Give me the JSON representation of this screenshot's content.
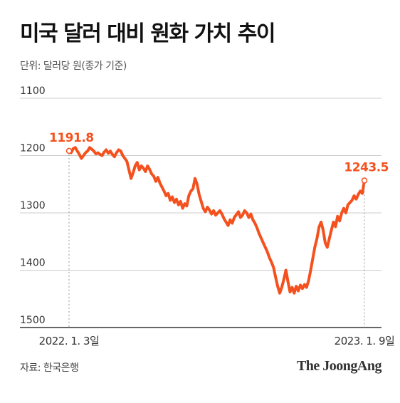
{
  "title": "미국 달러 대비 원화 가치 추이",
  "unit_label": "단위: 달러당 원(종가 기준)",
  "source": "자료: 한국은행",
  "brand": "The JoongAng",
  "colors": {
    "line": "#f4511e",
    "grid": "#cccccc",
    "axis": "#333333",
    "label": "#f4511e"
  },
  "chart_data": {
    "type": "line",
    "title": "미국 달러 대비 원화 가치 추이",
    "xlabel": "",
    "ylabel": "",
    "y_inverted": true,
    "ylim": [
      1100,
      1500
    ],
    "yticks": [
      1100,
      1200,
      1300,
      1400,
      1500
    ],
    "x_tick_labels": [
      "2022. 1. 3일",
      "2023. 1. 9일"
    ],
    "grid": true,
    "annotations": [
      {
        "label": "1191.8",
        "point": "start"
      },
      {
        "label": "1243.5",
        "point": "end"
      }
    ],
    "series": [
      {
        "values": [
          1191.8,
          1195,
          1188,
          1186,
          1192,
          1198,
          1205,
          1200,
          1195,
          1192,
          1186,
          1189,
          1192,
          1197,
          1195,
          1198,
          1200,
          1194,
          1190,
          1196,
          1192,
          1198,
          1202,
          1195,
          1190,
          1192,
          1200,
          1205,
          1210,
          1225,
          1240,
          1230,
          1218,
          1212,
          1225,
          1218,
          1222,
          1228,
          1218,
          1224,
          1232,
          1236,
          1245,
          1238,
          1248,
          1255,
          1262,
          1270,
          1266,
          1278,
          1272,
          1282,
          1276,
          1286,
          1280,
          1292,
          1284,
          1288,
          1270,
          1262,
          1258,
          1240,
          1250,
          1268,
          1280,
          1292,
          1298,
          1290,
          1295,
          1302,
          1296,
          1304,
          1300,
          1296,
          1302,
          1310,
          1316,
          1322,
          1312,
          1318,
          1308,
          1303,
          1298,
          1308,
          1304,
          1296,
          1300,
          1308,
          1302,
          1312,
          1318,
          1326,
          1336,
          1344,
          1352,
          1360,
          1368,
          1378,
          1386,
          1395,
          1412,
          1428,
          1440,
          1430,
          1416,
          1400,
          1420,
          1438,
          1430,
          1440,
          1428,
          1436,
          1426,
          1432,
          1425,
          1430,
          1418,
          1400,
          1380,
          1360,
          1345,
          1325,
          1316,
          1330,
          1352,
          1360,
          1345,
          1330,
          1316,
          1324,
          1306,
          1314,
          1300,
          1292,
          1300,
          1286,
          1282,
          1278,
          1270,
          1276,
          1268,
          1262,
          1266,
          1243.5
        ]
      }
    ]
  }
}
